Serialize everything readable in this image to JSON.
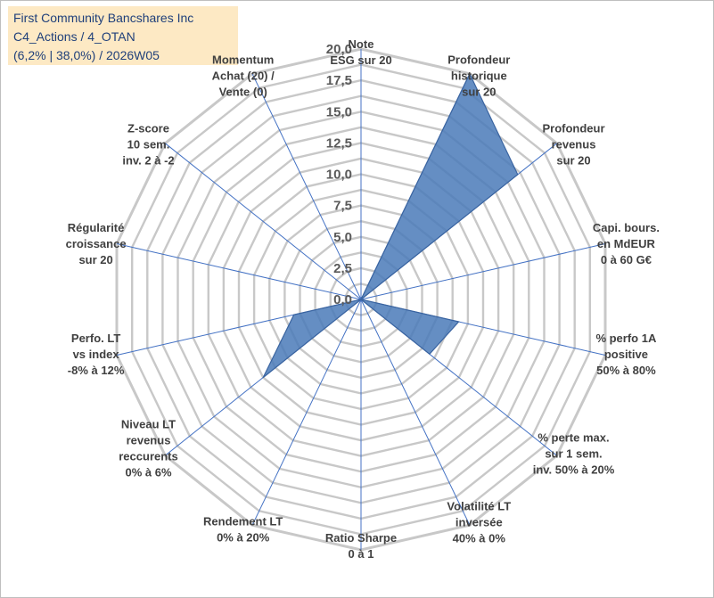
{
  "header": {
    "line1": "First Community Bancshares Inc",
    "line2": "C4_Actions / 4_OTAN",
    "line3": "(6,2% | 38,0%) / 2026W05"
  },
  "colors": {
    "fill": "#4a7ab8",
    "grid": "#c8c8c8",
    "spoke": "#4472c4",
    "header_bg": "#fde9c4",
    "header_text": "#1f3f7a"
  },
  "chart_data": {
    "type": "radar",
    "rmin": 0,
    "rmax": 20,
    "tick_step": 2.5,
    "tick_labels": [
      "0,0",
      "2,5",
      "5,0",
      "7,5",
      "10,0",
      "12,5",
      "15,0",
      "17,5",
      "20,0"
    ],
    "axes": [
      [
        "Note",
        "ESG sur 20"
      ],
      [
        "Profondeur",
        "historique",
        "sur 20"
      ],
      [
        "Profondeur",
        "revenus",
        "sur 20"
      ],
      [
        "Capi. bours.",
        "en MdEUR",
        "0 à 60 G€"
      ],
      [
        "% perfo 1A",
        "positive",
        "50% à 80%"
      ],
      [
        "% perte max.",
        "sur 1 sem.",
        "inv. 50% à 20%"
      ],
      [
        "Volatilité LT",
        "inversée",
        "40% à 0%"
      ],
      [
        "Ratio Sharpe",
        "0 à 1"
      ],
      [
        "Rendement LT",
        "0% à 20%"
      ],
      [
        "Niveau LT",
        "revenus",
        "reccurents",
        "0% à 6%"
      ],
      [
        "Perfo. LT",
        "vs index",
        "-8% à 12%"
      ],
      [
        "Régularité",
        "croissance",
        "sur 20"
      ],
      [
        "Z-score",
        "10 sem.",
        "inv. 2 à -2"
      ],
      [
        "Momentum",
        "Achat (20) /",
        "Vente (0)"
      ]
    ],
    "values": [
      0,
      20,
      16,
      0,
      8,
      7,
      0,
      0,
      0,
      10,
      5.5,
      0,
      0,
      0
    ]
  }
}
